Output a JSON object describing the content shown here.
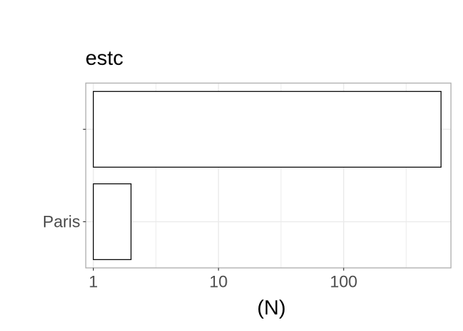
{
  "chart_data": {
    "type": "bar",
    "orientation": "horizontal",
    "title": "estc",
    "xlabel": "(N)",
    "ylabel": "",
    "x_scale": "log10",
    "xlim": [
      0.87,
      720
    ],
    "x_ticks": [
      1,
      10,
      100
    ],
    "x_tick_labels": [
      "1",
      "10",
      "100"
    ],
    "minor_gridlines": [
      3.16,
      31.6,
      316
    ],
    "categories": [
      "Paris",
      ""
    ],
    "y_tick_labels": [
      "Paris",
      ""
    ],
    "values": [
      2,
      600
    ],
    "bar_fill": "#ffffff",
    "bar_stroke": "#000000",
    "grid": true,
    "grid_color": "#ebebeb",
    "panel_border_color": "#b3b3b3",
    "legend": "none"
  }
}
